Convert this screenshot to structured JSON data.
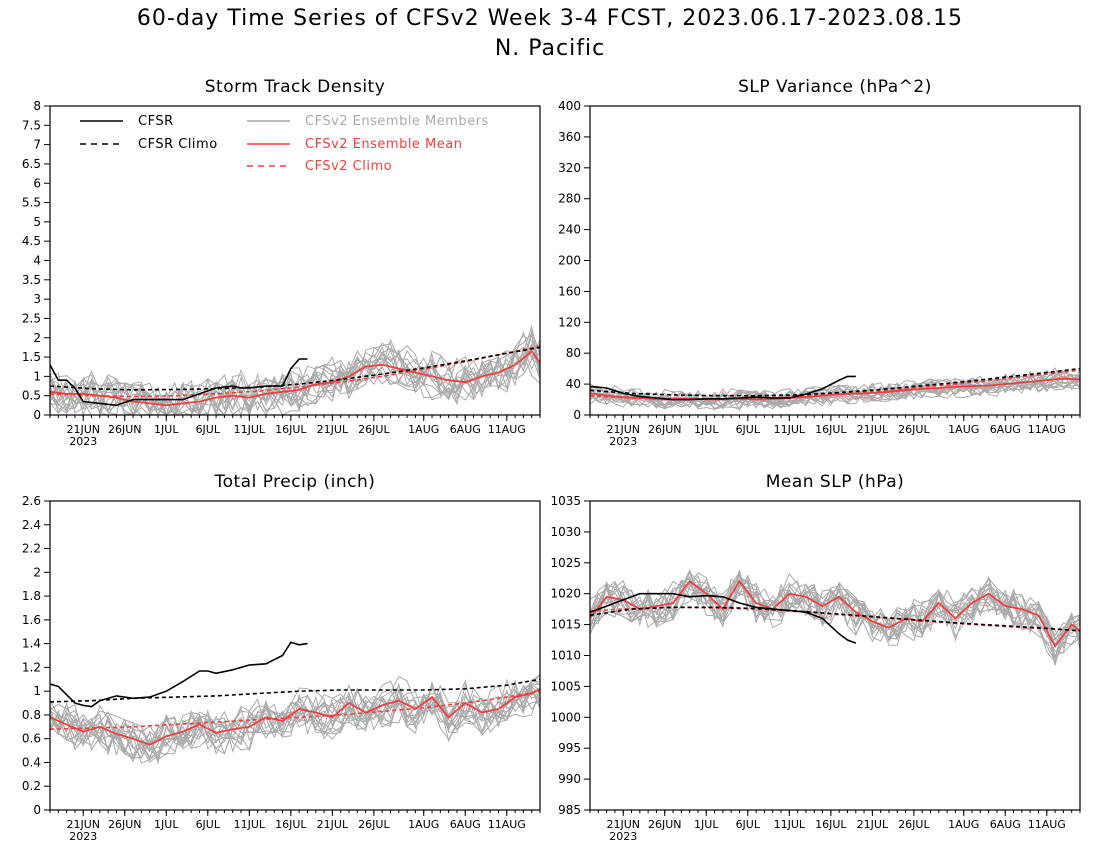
{
  "header": {
    "title": "60-day Time Series of CFSv2 Week 3-4 FCST, 2023.06.17-2023.08.15",
    "subtitle": "N. Pacific"
  },
  "x_axis": {
    "tick_labels": [
      "21JUN",
      "26JUN",
      "1JUL",
      "6JUL",
      "11JUL",
      "16JUL",
      "21JUL",
      "26JUL",
      "1AUG",
      "6AUG",
      "11AUG"
    ],
    "tick_days": [
      4,
      9,
      14,
      19,
      24,
      29,
      34,
      39,
      45,
      50,
      55
    ],
    "year_label": "2023"
  },
  "legend": {
    "cfsr": "CFSR",
    "cfsr_climo": "CFSR Climo",
    "members": "CFSv2 Ensemble Members",
    "ens_mean": "CFSv2 Ensemble Mean",
    "cfsv2_climo": "CFSv2 Climo"
  },
  "colors": {
    "cfsr": "#000000",
    "members": "#aaaaaa",
    "ens_mean": "#f04040",
    "cfsv2_climo": "#f04040"
  },
  "chart_data": [
    {
      "type": "line",
      "title": "Storm Track Density",
      "ylim": [
        0,
        8
      ],
      "yticks": [
        "0",
        "0.5",
        "1",
        "1.5",
        "2",
        "2.5",
        "3",
        "3.5",
        "4",
        "4.5",
        "5",
        "5.5",
        "6",
        "6.5",
        "7",
        "7.5",
        "8"
      ],
      "ytick_values": [
        0,
        0.5,
        1,
        1.5,
        2,
        2.5,
        3,
        3.5,
        4,
        4.5,
        5,
        5.5,
        6,
        6.5,
        7,
        7.5,
        8
      ],
      "member_spread": 0.45,
      "series": [
        {
          "name": "CFSR",
          "x": [
            0,
            1,
            2,
            3,
            4,
            6,
            8,
            10,
            12,
            14,
            16,
            18,
            20,
            22,
            23,
            24,
            26,
            28,
            29,
            30,
            31
          ],
          "y": [
            1.3,
            0.9,
            0.9,
            0.7,
            0.35,
            0.3,
            0.25,
            0.4,
            0.4,
            0.4,
            0.4,
            0.55,
            0.7,
            0.75,
            0.7,
            0.7,
            0.75,
            0.75,
            1.2,
            1.45,
            1.45
          ]
        },
        {
          "name": "CFSR Climo",
          "x": [
            0,
            5,
            10,
            15,
            20,
            25,
            30,
            35,
            40,
            45,
            50,
            55,
            59
          ],
          "y": [
            0.75,
            0.68,
            0.65,
            0.66,
            0.68,
            0.72,
            0.8,
            0.92,
            1.06,
            1.22,
            1.4,
            1.6,
            1.75
          ]
        },
        {
          "name": "CFSv2 Ensemble Mean",
          "x": [
            0,
            2,
            4,
            6,
            8,
            10,
            12,
            14,
            16,
            18,
            20,
            22,
            24,
            26,
            28,
            30,
            32,
            34,
            36,
            38,
            40,
            42,
            44,
            46,
            48,
            50,
            52,
            54,
            56,
            58,
            59
          ],
          "y": [
            0.6,
            0.55,
            0.55,
            0.5,
            0.45,
            0.35,
            0.3,
            0.25,
            0.3,
            0.35,
            0.45,
            0.5,
            0.45,
            0.55,
            0.6,
            0.65,
            0.8,
            0.85,
            1.0,
            1.25,
            1.3,
            1.2,
            1.1,
            1.0,
            0.9,
            0.85,
            1.0,
            1.1,
            1.3,
            1.65,
            1.35
          ]
        },
        {
          "name": "CFSv2 Climo",
          "x": [
            0,
            5,
            10,
            15,
            20,
            25,
            30,
            35,
            40,
            45,
            50,
            55,
            59
          ],
          "y": [
            0.55,
            0.5,
            0.48,
            0.5,
            0.55,
            0.62,
            0.72,
            0.85,
            1.0,
            1.18,
            1.38,
            1.6,
            1.78
          ]
        }
      ]
    },
    {
      "type": "line",
      "title": "SLP Variance (hPa^2)",
      "ylim": [
        0,
        400
      ],
      "yticks": [
        "0",
        "40",
        "80",
        "120",
        "160",
        "200",
        "240",
        "280",
        "320",
        "360",
        "400"
      ],
      "ytick_values": [
        0,
        40,
        80,
        120,
        160,
        200,
        240,
        280,
        320,
        360,
        400
      ],
      "member_spread": 10,
      "series": [
        {
          "name": "CFSR",
          "x": [
            0,
            2,
            4,
            6,
            8,
            10,
            12,
            14,
            16,
            18,
            20,
            22,
            24,
            26,
            28,
            30,
            31,
            32
          ],
          "y": [
            37,
            35,
            28,
            24,
            22,
            20,
            20,
            21,
            21,
            22,
            23,
            22,
            22,
            27,
            34,
            45,
            50,
            50
          ]
        },
        {
          "name": "CFSR Climo",
          "x": [
            0,
            5,
            10,
            15,
            20,
            25,
            30,
            35,
            40,
            45,
            50,
            55,
            59
          ],
          "y": [
            32,
            28,
            26,
            25,
            25,
            26,
            29,
            33,
            38,
            43,
            49,
            55,
            60
          ]
        },
        {
          "name": "CFSv2 Ensemble Mean",
          "x": [
            0,
            3,
            6,
            9,
            12,
            15,
            18,
            21,
            24,
            27,
            30,
            33,
            36,
            39,
            42,
            45,
            48,
            51,
            54,
            57,
            59
          ],
          "y": [
            28,
            24,
            22,
            20,
            21,
            20,
            21,
            20,
            22,
            24,
            27,
            28,
            30,
            33,
            35,
            37,
            38,
            41,
            44,
            47,
            46
          ]
        },
        {
          "name": "CFSv2 Climo",
          "x": [
            0,
            5,
            10,
            15,
            20,
            25,
            30,
            35,
            40,
            45,
            50,
            55,
            59
          ],
          "y": [
            25,
            22,
            21,
            21,
            22,
            24,
            27,
            31,
            36,
            41,
            47,
            53,
            58
          ]
        }
      ]
    },
    {
      "type": "line",
      "title": "Total Precip (inch)",
      "ylim": [
        0,
        2.6
      ],
      "yticks": [
        "0",
        "0.2",
        "0.4",
        "0.6",
        "0.8",
        "1",
        "1.2",
        "1.4",
        "1.6",
        "1.8",
        "2",
        "2.2",
        "2.4",
        "2.6"
      ],
      "ytick_values": [
        0,
        0.2,
        0.4,
        0.6,
        0.8,
        1.0,
        1.2,
        1.4,
        1.6,
        1.8,
        2.0,
        2.2,
        2.4,
        2.6
      ],
      "member_spread": 0.14,
      "series": [
        {
          "name": "CFSR",
          "x": [
            0,
            1,
            2,
            3,
            4,
            5,
            6,
            8,
            10,
            12,
            14,
            16,
            18,
            19,
            20,
            22,
            24,
            26,
            28,
            29,
            30,
            31
          ],
          "y": [
            1.06,
            1.04,
            0.97,
            0.9,
            0.88,
            0.87,
            0.92,
            0.96,
            0.94,
            0.95,
            1.0,
            1.08,
            1.17,
            1.17,
            1.15,
            1.18,
            1.22,
            1.23,
            1.3,
            1.41,
            1.39,
            1.4
          ]
        },
        {
          "name": "CFSR Climo",
          "x": [
            0,
            5,
            10,
            15,
            20,
            25,
            30,
            35,
            40,
            45,
            50,
            55,
            59
          ],
          "y": [
            0.91,
            0.92,
            0.94,
            0.95,
            0.96,
            0.98,
            1.0,
            1.01,
            1.01,
            1.01,
            1.02,
            1.05,
            1.1
          ]
        },
        {
          "name": "CFSv2 Ensemble Mean",
          "x": [
            0,
            2,
            4,
            6,
            8,
            10,
            12,
            14,
            16,
            18,
            20,
            22,
            24,
            26,
            28,
            30,
            32,
            34,
            36,
            38,
            40,
            42,
            44,
            46,
            48,
            50,
            52,
            54,
            56,
            58,
            59
          ],
          "y": [
            0.78,
            0.72,
            0.66,
            0.7,
            0.64,
            0.6,
            0.55,
            0.62,
            0.66,
            0.72,
            0.65,
            0.68,
            0.7,
            0.78,
            0.75,
            0.85,
            0.82,
            0.78,
            0.9,
            0.82,
            0.88,
            0.92,
            0.85,
            0.95,
            0.78,
            0.9,
            0.82,
            0.85,
            0.95,
            0.98,
            1.02
          ]
        },
        {
          "name": "CFSv2 Climo",
          "x": [
            0,
            5,
            10,
            15,
            20,
            25,
            30,
            35,
            40,
            45,
            50,
            55,
            59
          ],
          "y": [
            0.68,
            0.69,
            0.7,
            0.72,
            0.74,
            0.76,
            0.78,
            0.8,
            0.83,
            0.86,
            0.9,
            0.95,
            1.0
          ]
        }
      ]
    },
    {
      "type": "line",
      "title": "Mean SLP (hPa)",
      "ylim": [
        985,
        1035
      ],
      "yticks": [
        "985",
        "990",
        "995",
        "1000",
        "1005",
        "1010",
        "1015",
        "1020",
        "1025",
        "1030",
        "1035"
      ],
      "ytick_values": [
        985,
        990,
        995,
        1000,
        1005,
        1010,
        1015,
        1020,
        1025,
        1030,
        1035
      ],
      "member_spread": 2.5,
      "series": [
        {
          "name": "CFSR",
          "x": [
            0,
            2,
            4,
            6,
            8,
            10,
            12,
            14,
            16,
            18,
            20,
            22,
            24,
            26,
            28,
            30,
            31,
            32
          ],
          "y": [
            1017,
            1018,
            1019,
            1020,
            1020,
            1020,
            1019.5,
            1019.7,
            1019.5,
            1018.5,
            1017.8,
            1017.5,
            1017.3,
            1017,
            1016,
            1013.5,
            1012.5,
            1012
          ]
        },
        {
          "name": "CFSR Climo",
          "x": [
            0,
            5,
            10,
            15,
            20,
            25,
            30,
            35,
            40,
            45,
            50,
            55,
            59
          ],
          "y": [
            1016.5,
            1017.5,
            1017.8,
            1017.8,
            1017.6,
            1017.2,
            1016.7,
            1016.2,
            1015.7,
            1015.2,
            1014.8,
            1014.4,
            1014
          ]
        },
        {
          "name": "CFSv2 Ensemble Mean",
          "x": [
            0,
            2,
            4,
            6,
            8,
            10,
            12,
            14,
            16,
            18,
            20,
            22,
            24,
            26,
            28,
            30,
            32,
            34,
            36,
            38,
            40,
            42,
            44,
            46,
            48,
            50,
            52,
            54,
            56,
            58,
            59
          ],
          "y": [
            1016,
            1019.5,
            1019,
            1017.5,
            1018,
            1018.5,
            1022,
            1020,
            1017.5,
            1022,
            1018.5,
            1017.5,
            1020,
            1019.5,
            1018,
            1019.5,
            1017,
            1015.5,
            1014.5,
            1016,
            1015.5,
            1018.5,
            1016,
            1018.5,
            1020,
            1018,
            1017.5,
            1016.5,
            1011.5,
            1015,
            1014
          ]
        },
        {
          "name": "CFSv2 Climo",
          "x": [
            0,
            5,
            10,
            15,
            20,
            25,
            30,
            35,
            40,
            45,
            50,
            55,
            59
          ],
          "y": [
            1017.2,
            1017.6,
            1017.8,
            1017.7,
            1017.5,
            1017.1,
            1016.6,
            1016.1,
            1015.6,
            1015.1,
            1014.7,
            1014.3,
            1014
          ]
        }
      ]
    }
  ]
}
